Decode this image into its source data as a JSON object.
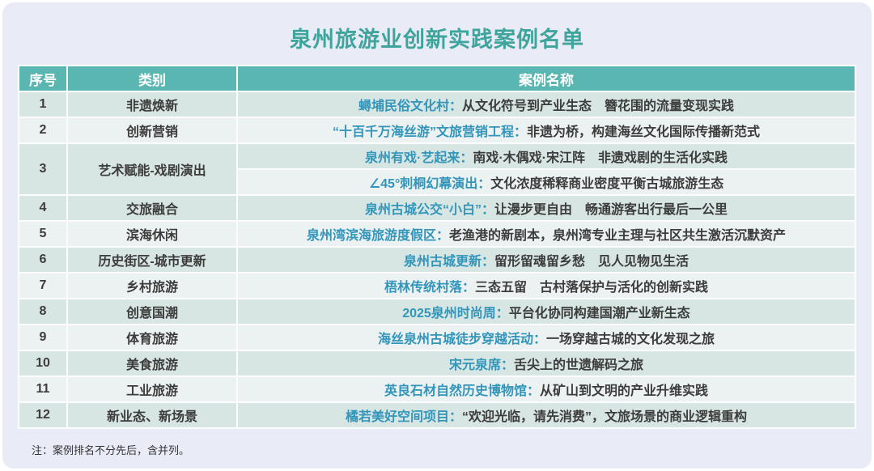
{
  "page": {
    "title": "泉州旅游业创新实践案例名单",
    "note": "注：案例排名不分先后，含并列。"
  },
  "colors": {
    "panel_bg": "#e9ecf7",
    "header_bg": "#5ab6b1",
    "row_green": "#d8e6e3",
    "row_light": "#ecf1f2",
    "grid_line": "#fbfdfd",
    "title_color": "#3fa49c",
    "case_name_color": "#3295ba",
    "text_dark": "#3c3c3c"
  },
  "table": {
    "headers": [
      "序号",
      "类别",
      "案例名称"
    ],
    "rows": [
      {
        "no": "1",
        "category": "非遗焕新",
        "cases": [
          {
            "name": "蟳埔民俗文化村：",
            "desc": "从文化符号到产业生态　簪花围的流量变现实践"
          }
        ]
      },
      {
        "no": "2",
        "category": "创新营销",
        "cases": [
          {
            "name": "“十百千万海丝游”文旅营销工程：",
            "desc": "非遗为桥，构建海丝文化国际传播新范式"
          }
        ]
      },
      {
        "no": "3",
        "category": "艺术赋能-戏剧演出",
        "cases": [
          {
            "name": "泉州有戏·艺起来：",
            "desc": "南戏·木偶戏·宋江阵　非遗戏剧的生活化实践"
          },
          {
            "name": "∠45°刺桐幻幕演出：",
            "desc": "文化浓度稀释商业密度平衡古城旅游生态"
          }
        ]
      },
      {
        "no": "4",
        "category": "交旅融合",
        "cases": [
          {
            "name": "泉州古城公交“小白”：",
            "desc": "让漫步更自由　畅通游客出行最后一公里"
          }
        ]
      },
      {
        "no": "5",
        "category": "滨海休闲",
        "cases": [
          {
            "name": "泉州湾滨海旅游度假区：",
            "desc": "老渔港的新剧本，泉州湾专业主理与社区共生激活沉默资产"
          }
        ]
      },
      {
        "no": "6",
        "category": "历史街区-城市更新",
        "cases": [
          {
            "name": "泉州古城更新：",
            "desc": "留形留魂留乡愁　见人见物见生活"
          }
        ]
      },
      {
        "no": "7",
        "category": "乡村旅游",
        "cases": [
          {
            "name": "梧林传统村落：",
            "desc": "三态五留　古村落保护与活化的创新实践"
          }
        ]
      },
      {
        "no": "8",
        "category": "创意国潮",
        "cases": [
          {
            "name": "2025泉州时尚周：",
            "desc": "平台化协同构建国潮产业新生态"
          }
        ]
      },
      {
        "no": "9",
        "category": "体育旅游",
        "cases": [
          {
            "name": "海丝泉州古城徒步穿越活动：",
            "desc": "一场穿越古城的文化发现之旅"
          }
        ]
      },
      {
        "no": "10",
        "category": "美食旅游",
        "cases": [
          {
            "name": "宋元泉席：",
            "desc": "舌尖上的世遗解码之旅"
          }
        ]
      },
      {
        "no": "11",
        "category": "工业旅游",
        "cases": [
          {
            "name": "英良石材自然历史博物馆：",
            "desc": "从矿山到文明的产业升维实践"
          }
        ]
      },
      {
        "no": "12",
        "category": "新业态、新场景",
        "cases": [
          {
            "name": "橘若美好空间项目：",
            "desc": "“欢迎光临，请先消费”，文旅场景的商业逻辑重构"
          }
        ]
      }
    ]
  }
}
